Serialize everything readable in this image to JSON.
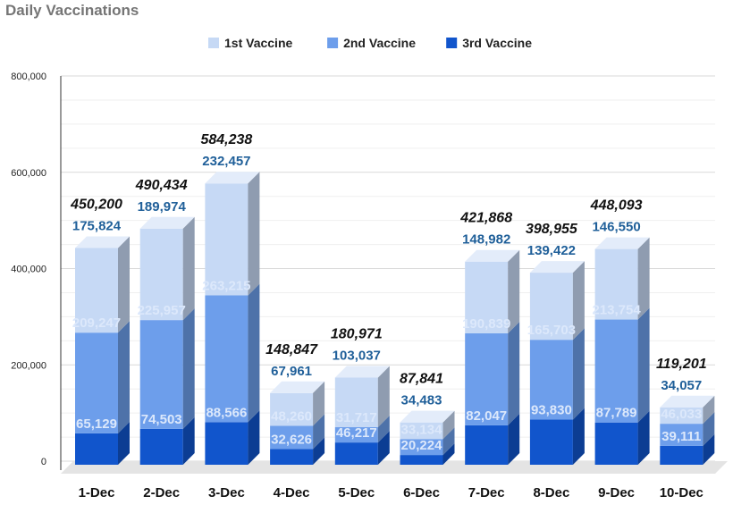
{
  "chart_data": {
    "type": "bar",
    "stacked": true,
    "title": "Daily Vaccinations",
    "categories": [
      "1-Dec",
      "2-Dec",
      "3-Dec",
      "4-Dec",
      "5-Dec",
      "6-Dec",
      "7-Dec",
      "8-Dec",
      "9-Dec",
      "10-Dec"
    ],
    "series": [
      {
        "name": "1st Vaccine",
        "color": "#c6d9f5",
        "values": [
          175824,
          189974,
          232457,
          67961,
          103037,
          34483,
          148982,
          139422,
          146550,
          34057
        ]
      },
      {
        "name": "2nd Vaccine",
        "color": "#6d9eeb",
        "values": [
          209247,
          225957,
          263215,
          48260,
          31717,
          33134,
          190839,
          165703,
          213754,
          46033
        ]
      },
      {
        "name": "3rd Vaccine",
        "color": "#1155cc",
        "values": [
          65129,
          74503,
          88566,
          32626,
          46217,
          20224,
          82047,
          93830,
          87789,
          39111
        ]
      }
    ],
    "totals": [
      450200,
      490434,
      584238,
      148847,
      180971,
      87841,
      421868,
      398955,
      448093,
      119201
    ],
    "ylim": [
      0,
      800000
    ],
    "yticks": [
      "0",
      "200,000",
      "400,000",
      "600,000",
      "800,000"
    ],
    "grid": true,
    "legend": "top",
    "style": "3d"
  }
}
